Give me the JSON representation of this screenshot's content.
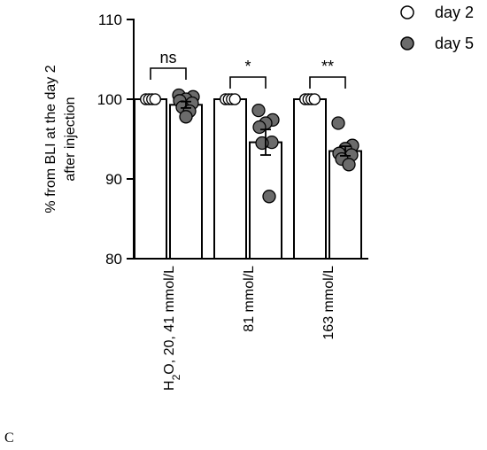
{
  "panel_label": "C",
  "colors": {
    "day2_fill": "#ffffff",
    "day5_fill": "#6b6b6b",
    "stroke": "#000000"
  },
  "chart_data": {
    "type": "bar",
    "ylabel_lines": [
      "% from BLI at the day 2",
      "after injection"
    ],
    "ylim": [
      80,
      110
    ],
    "yticks": [
      "80",
      "90",
      "100",
      "110"
    ],
    "categories": [
      {
        "parts": [
          [
            "H",
            ""
          ],
          [
            "2",
            "sub"
          ],
          [
            "O, 20, 41 mmol/L",
            ""
          ]
        ]
      },
      {
        "parts": [
          [
            "81 mmol/L",
            ""
          ]
        ]
      },
      {
        "parts": [
          [
            "163 mmol/L",
            ""
          ]
        ]
      }
    ],
    "series": [
      {
        "name": "day 2",
        "values": [
          100,
          100,
          100
        ],
        "points": [
          [
            100,
            100,
            100,
            100,
            100,
            100,
            100,
            100
          ],
          [
            100,
            100,
            100,
            100,
            100,
            100,
            100,
            100
          ],
          [
            100,
            100,
            100,
            100,
            100,
            100,
            100,
            100
          ]
        ],
        "error": [
          0,
          0,
          0
        ]
      },
      {
        "name": "day 5",
        "values": [
          99.3,
          94.6,
          93.5
        ],
        "points": [
          [
            100.5,
            100.3,
            100.0,
            99.8,
            99.5,
            99.0,
            98.5,
            97.8
          ],
          [
            98.6,
            97.4,
            97.0,
            96.5,
            94.6,
            94.5,
            87.8
          ],
          [
            97.0,
            94.2,
            93.8,
            93.2,
            93.0,
            92.5,
            91.8
          ]
        ],
        "error": [
          0.4,
          1.6,
          0.6
        ]
      }
    ],
    "significance": [
      "ns",
      "*",
      "**"
    ],
    "legend_position": "top-right"
  }
}
